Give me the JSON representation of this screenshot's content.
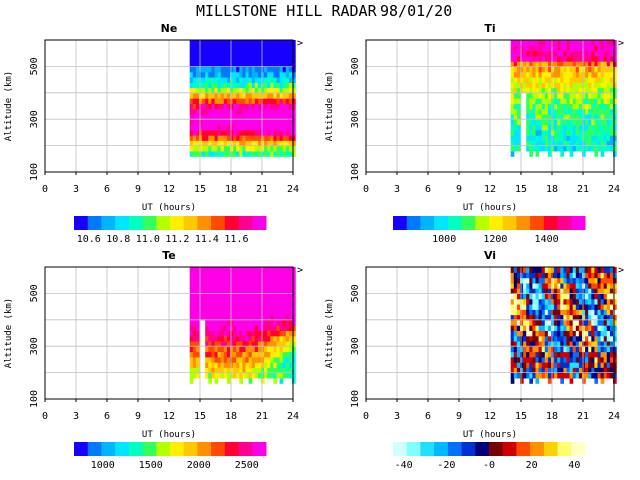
{
  "title": "MILLSTONE HILL RADAR",
  "date": "98/01/20",
  "colors": {
    "cmap_main": [
      "#1800ff",
      "#0078ff",
      "#00b4ff",
      "#00e6ff",
      "#00ffc0",
      "#34ff5a",
      "#b4ff00",
      "#fff000",
      "#ffc800",
      "#ff9000",
      "#ff4a00",
      "#ff0030",
      "#ff0090",
      "#ff00e6"
    ],
    "cmap_vi": [
      "#d0ffff",
      "#80ffff",
      "#20e0ff",
      "#00b8ff",
      "#0070ff",
      "#0030d0",
      "#00007a",
      "#7a0000",
      "#d00000",
      "#ff4a00",
      "#ff9000",
      "#ffd000",
      "#ffff70",
      "#ffffc8"
    ],
    "grid": "#c0c0c0"
  },
  "chart_data": [
    {
      "type": "heatmap",
      "title": "Ne",
      "xlabel": "UT (hours)",
      "ylabel": "Altitude (km)",
      "xlim": [
        0,
        24
      ],
      "ylim": [
        100,
        600
      ],
      "xticks": [
        "0",
        "3",
        "6",
        "9",
        "12",
        "15",
        "18",
        "21",
        "24"
      ],
      "yticks": [
        "100",
        "300",
        "500"
      ],
      "data_start_ut": 14,
      "colorbar": {
        "min": 10.5,
        "max": 11.8,
        "ticks": [
          "10.6",
          "10.8",
          "11.0",
          "11.2",
          "11.4",
          "11.6"
        ],
        "tick_values": [
          10.6,
          10.8,
          11.0,
          11.2,
          11.4,
          11.6
        ]
      }
    },
    {
      "type": "heatmap",
      "title": "Ti",
      "xlabel": "UT (hours)",
      "ylabel": "Altitude (km)",
      "xlim": [
        0,
        24
      ],
      "ylim": [
        100,
        600
      ],
      "xticks": [
        "0",
        "3",
        "6",
        "9",
        "12",
        "15",
        "18",
        "21",
        "24"
      ],
      "yticks": [
        "100",
        "300",
        "500"
      ],
      "data_start_ut": 14,
      "colorbar": {
        "min": 800,
        "max": 1550,
        "ticks": [
          "1000",
          "1200",
          "1400"
        ],
        "tick_values": [
          1000,
          1200,
          1400
        ]
      }
    },
    {
      "type": "heatmap",
      "title": "Te",
      "xlabel": "UT (hours)",
      "ylabel": "Altitude (km)",
      "xlim": [
        0,
        24
      ],
      "ylim": [
        100,
        600
      ],
      "xticks": [
        "0",
        "3",
        "6",
        "9",
        "12",
        "15",
        "18",
        "21",
        "24"
      ],
      "yticks": [
        "100",
        "300",
        "500"
      ],
      "data_start_ut": 14,
      "colorbar": {
        "min": 700,
        "max": 2700,
        "ticks": [
          "1000",
          "1500",
          "2000",
          "2500"
        ],
        "tick_values": [
          1000,
          1500,
          2000,
          2500
        ]
      }
    },
    {
      "type": "heatmap",
      "title": "Vi",
      "xlabel": "UT (hours)",
      "ylabel": "Altitude (km)",
      "xlim": [
        0,
        24
      ],
      "ylim": [
        100,
        600
      ],
      "xticks": [
        "0",
        "3",
        "6",
        "9",
        "12",
        "15",
        "18",
        "21",
        "24"
      ],
      "yticks": [
        "100",
        "300",
        "500"
      ],
      "data_start_ut": 14,
      "colorbar": {
        "min": -45,
        "max": 45,
        "ticks": [
          "-40",
          "-20",
          "-0",
          "20",
          "40"
        ],
        "tick_values": [
          -40,
          -20,
          0,
          20,
          40
        ]
      }
    }
  ]
}
